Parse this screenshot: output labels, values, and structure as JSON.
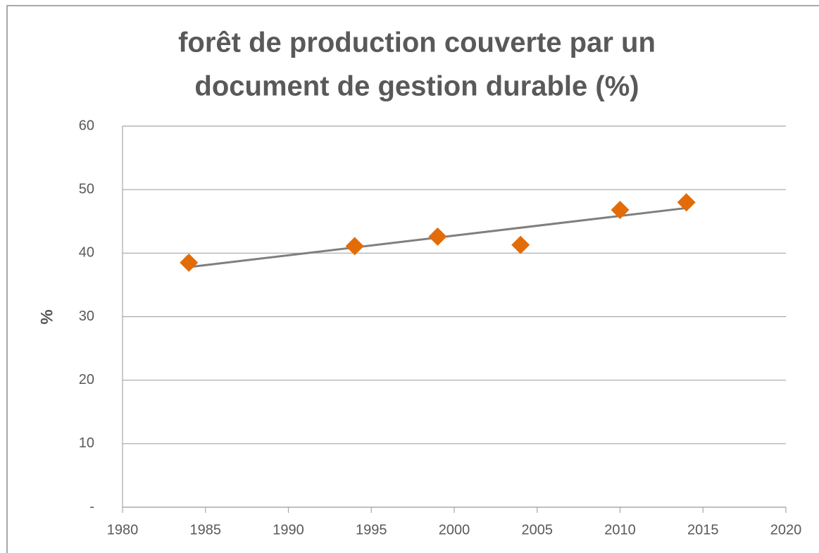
{
  "chart_data": {
    "type": "scatter",
    "title": [
      "forêt de production couverte par un",
      "document de gestion durable (%)"
    ],
    "y_label": "%",
    "series": [
      {
        "x": [
          1984,
          1994,
          1999,
          2004,
          2010,
          2014
        ],
        "values": [
          38.5,
          41.1,
          42.6,
          41.3,
          46.8,
          48.0
        ],
        "color": "#e36c09"
      }
    ],
    "trendline": {
      "x": [
        1984,
        2014
      ],
      "values": [
        37.8,
        47.1
      ],
      "color": "#7f7f7f"
    },
    "xlim": [
      1980,
      2020
    ],
    "xticks": [
      1980,
      1985,
      1990,
      1995,
      2000,
      2005,
      2010,
      2015,
      2020
    ],
    "ylim": [
      0,
      60
    ],
    "yticks": [
      {
        "value": 0,
        "label": "-"
      },
      10,
      20,
      30,
      40,
      50,
      60
    ],
    "grid": true
  }
}
